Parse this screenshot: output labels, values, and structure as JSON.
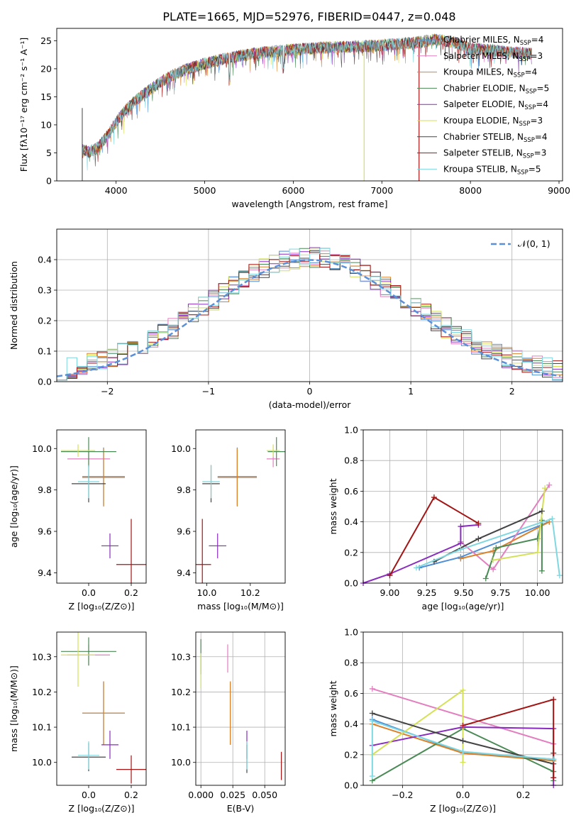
{
  "title": "PLATE=1665, MJD=52976, FIBERID=0447, z=0.048",
  "colors": {
    "chabrier_miles": "#4f8fd8",
    "salpeter_miles": "#e37fbf",
    "kroupa_miles": "#d9822b",
    "chabrier_elodie": "#4a8a55",
    "salpeter_elodie": "#8a2bbf",
    "kroupa_elodie": "#d4e157",
    "chabrier_stelib": "#444444",
    "salpeter_stelib": "#a31515",
    "kroupa_stelib": "#7fd8e0",
    "normal_curve": "#5b8fd8"
  },
  "chart_data": [
    {
      "id": "spectrum",
      "type": "line",
      "xlabel": "wavelength [Angstrom, rest frame]",
      "ylabel": "Flux [fλ10⁻¹⁷ erg cm⁻² s⁻¹ A⁻¹]",
      "xlim": [
        3330,
        9040
      ],
      "ylim": [
        0,
        27.2
      ],
      "xticks": [
        "4000",
        "5000",
        "6000",
        "7000",
        "8000",
        "9000"
      ],
      "yticks": [
        "0",
        "5",
        "10",
        "15",
        "20",
        "25"
      ],
      "continuum": {
        "x": [
          3620,
          3700,
          3800,
          3900,
          4000,
          4100,
          4200,
          4300,
          4400,
          4500,
          4600,
          4700,
          4800,
          4900,
          5000,
          5200,
          5400,
          5600,
          5800,
          6000,
          6200,
          6400,
          6600,
          6800,
          7000,
          7200,
          7400,
          7600,
          7800,
          8000,
          8200,
          8400,
          8600,
          8690
        ],
        "y": [
          5.5,
          5.2,
          6.0,
          8.0,
          10.5,
          12.5,
          14.0,
          15.3,
          16.5,
          17.6,
          18.5,
          19.3,
          19.9,
          20.4,
          20.9,
          21.7,
          22.3,
          22.8,
          23.1,
          23.4,
          23.6,
          23.8,
          23.9,
          24.0,
          24.2,
          24.4,
          24.7,
          25.2,
          24.8,
          23.6,
          23.4,
          23.0,
          22.8,
          22.7
        ]
      },
      "legend": [
        {
          "label": "Chabrier MILES, N",
          "sub": "SSP",
          "tail": "=4"
        },
        {
          "label": "Salpeter MILES, N",
          "sub": "SSP",
          "tail": "=3"
        },
        {
          "label": "Kroupa MILES, N",
          "sub": "SSP",
          "tail": "=4"
        },
        {
          "label": "Chabrier ELODIE, N",
          "sub": "SSP",
          "tail": "=5"
        },
        {
          "label": "Salpeter ELODIE, N",
          "sub": "SSP",
          "tail": "=4"
        },
        {
          "label": "Kroupa ELODIE, N",
          "sub": "SSP",
          "tail": "=3"
        },
        {
          "label": "Chabrier STELIB, N",
          "sub": "SSP",
          "tail": "=4"
        },
        {
          "label": "Salpeter STELIB, N",
          "sub": "SSP",
          "tail": "=3"
        },
        {
          "label": "Kroupa STELIB, N",
          "sub": "SSP",
          "tail": "=5"
        }
      ]
    },
    {
      "id": "residuals",
      "type": "histogram",
      "xlabel": "(data-model)/error",
      "ylabel": "Normed distribution",
      "xlim": [
        -2.5,
        2.5
      ],
      "ylim": [
        0,
        0.5
      ],
      "xticks": [
        "−2",
        "−1",
        "0",
        "1",
        "2"
      ],
      "yticks": [
        "0.0",
        "0.1",
        "0.2",
        "0.3",
        "0.4"
      ],
      "grid": true,
      "legend": "𝒩(0, 1)",
      "bin_width": 0.1
    },
    {
      "id": "age_vs_Z",
      "type": "scatter",
      "xlabel": "Z [log₁₀(Z/Z⊙)]",
      "ylabel": "age  [log₁₀(age/yr)]",
      "xlim": [
        -0.15,
        0.27
      ],
      "ylim": [
        9.35,
        10.09
      ],
      "xticks": [
        "0.0",
        "0.2"
      ],
      "yticks": [
        "9.4",
        "9.6",
        "9.8",
        "10.0"
      ],
      "points": [
        {
          "model": "chabrier_miles",
          "x": 0.07,
          "y": 9.865,
          "xerr": 0.1,
          "yerr": 0.14
        },
        {
          "model": "salpeter_miles",
          "x": 0.0,
          "y": 9.95,
          "xerr": 0.1,
          "yerr": 0.04
        },
        {
          "model": "kroupa_miles",
          "x": 0.07,
          "y": 9.86,
          "xerr": 0.1,
          "yerr": 0.14
        },
        {
          "model": "chabrier_elodie",
          "x": 0.0,
          "y": 9.985,
          "xerr": 0.13,
          "yerr": 0.07
        },
        {
          "model": "salpeter_elodie",
          "x": 0.1,
          "y": 9.53,
          "xerr": 0.04,
          "yerr": 0.06
        },
        {
          "model": "kroupa_elodie",
          "x": -0.05,
          "y": 9.99,
          "xerr": 0.08,
          "yerr": 0.03
        },
        {
          "model": "chabrier_stelib",
          "x": 0.0,
          "y": 9.83,
          "xerr": 0.08,
          "yerr": 0.09
        },
        {
          "model": "salpeter_stelib",
          "x": 0.2,
          "y": 9.44,
          "xerr": 0.07,
          "yerr": 0.22
        },
        {
          "model": "kroupa_stelib",
          "x": 0.0,
          "y": 9.84,
          "xerr": 0.05,
          "yerr": 0.08
        }
      ]
    },
    {
      "id": "age_vs_mass",
      "type": "scatter",
      "xlabel": "mass [log₁₀(M/M⊙)]",
      "xlim": [
        9.95,
        10.36
      ],
      "ylim": [
        9.35,
        10.09
      ],
      "xticks": [
        "10.0",
        "10.2"
      ],
      "yticks": [
        "9.4",
        "9.6",
        "9.8",
        "10.0"
      ],
      "points": [
        {
          "model": "chabrier_miles",
          "x": 10.14,
          "y": 9.865,
          "xerr": 0.09,
          "yerr": 0.14
        },
        {
          "model": "salpeter_miles",
          "x": 10.305,
          "y": 9.95,
          "xerr": 0.03,
          "yerr": 0.04
        },
        {
          "model": "kroupa_miles",
          "x": 10.14,
          "y": 9.86,
          "xerr": 0.09,
          "yerr": 0.14
        },
        {
          "model": "chabrier_elodie",
          "x": 10.32,
          "y": 9.985,
          "xerr": 0.04,
          "yerr": 0.07
        },
        {
          "model": "salpeter_elodie",
          "x": 10.05,
          "y": 9.53,
          "xerr": 0.04,
          "yerr": 0.06
        },
        {
          "model": "kroupa_elodie",
          "x": 10.305,
          "y": 9.99,
          "xerr": 0.03,
          "yerr": 0.03
        },
        {
          "model": "chabrier_stelib",
          "x": 10.02,
          "y": 9.83,
          "xerr": 0.04,
          "yerr": 0.09
        },
        {
          "model": "salpeter_stelib",
          "x": 9.98,
          "y": 9.44,
          "xerr": 0.04,
          "yerr": 0.22
        },
        {
          "model": "kroupa_stelib",
          "x": 10.02,
          "y": 9.84,
          "xerr": 0.04,
          "yerr": 0.08
        }
      ]
    },
    {
      "id": "weight_vs_age",
      "type": "line",
      "xlabel": "age  [log₁₀(age/yr)]",
      "ylabel": "mass weight",
      "xlim": [
        8.82,
        10.17
      ],
      "ylim": [
        0,
        1.0
      ],
      "xticks": [
        "9.00",
        "9.25",
        "9.50",
        "9.75",
        "10.00"
      ],
      "yticks": [
        "0.0",
        "0.2",
        "0.4",
        "0.6",
        "0.8",
        "1.0"
      ],
      "grid": true,
      "series": [
        {
          "model": "chabrier_miles",
          "x": [
            9.2,
            9.48,
            10.08
          ],
          "y": [
            0.1,
            0.17,
            0.4
          ]
        },
        {
          "model": "salpeter_miles",
          "x": [
            9.48,
            9.7,
            10.08
          ],
          "y": [
            0.27,
            0.09,
            0.64
          ]
        },
        {
          "model": "kroupa_miles",
          "x": [
            9.48,
            9.7,
            10.08
          ],
          "y": [
            0.16,
            0.21,
            0.4
          ]
        },
        {
          "model": "chabrier_elodie",
          "x": [
            9.65,
            9.72,
            10.0,
            10.03,
            10.03
          ],
          "y": [
            0.03,
            0.23,
            0.29,
            0.41,
            0.08
          ]
        },
        {
          "model": "salpeter_elodie",
          "x": [
            8.82,
            9.0,
            9.48,
            9.48,
            9.6
          ],
          "y": [
            0.0,
            0.06,
            0.26,
            0.37,
            0.38
          ]
        },
        {
          "model": "kroupa_elodie",
          "x": [
            9.7,
            10.0,
            10.05
          ],
          "y": [
            0.15,
            0.2,
            0.62
          ]
        },
        {
          "model": "chabrier_stelib",
          "x": [
            9.3,
            9.6,
            10.03
          ],
          "y": [
            0.14,
            0.29,
            0.47
          ]
        },
        {
          "model": "salpeter_stelib",
          "x": [
            9.0,
            9.3,
            9.6
          ],
          "y": [
            0.05,
            0.56,
            0.39
          ]
        },
        {
          "model": "kroupa_stelib",
          "x": [
            9.18,
            9.48,
            10.1,
            10.15
          ],
          "y": [
            0.1,
            0.22,
            0.42,
            0.05
          ]
        }
      ]
    },
    {
      "id": "mass_vs_Z",
      "type": "scatter",
      "xlabel": "Z [log₁₀(Z/Z⊙)]",
      "ylabel": "mass [log₁₀(M/M⊙)]",
      "xlim": [
        -0.15,
        0.27
      ],
      "ylim": [
        9.935,
        10.37
      ],
      "xticks": [
        "0.0",
        "0.2"
      ],
      "yticks": [
        "10.0",
        "10.1",
        "10.2",
        "10.3"
      ],
      "points": [
        {
          "model": "chabrier_miles",
          "x": 0.07,
          "y": 10.14,
          "xerr": 0.1,
          "yerr": 0.09
        },
        {
          "model": "salpeter_miles",
          "x": 0.0,
          "y": 10.305,
          "xerr": 0.1,
          "yerr": 0.03
        },
        {
          "model": "kroupa_miles",
          "x": 0.07,
          "y": 10.14,
          "xerr": 0.1,
          "yerr": 0.09
        },
        {
          "model": "chabrier_elodie",
          "x": 0.0,
          "y": 10.315,
          "xerr": 0.13,
          "yerr": 0.04
        },
        {
          "model": "salpeter_elodie",
          "x": 0.1,
          "y": 10.05,
          "xerr": 0.04,
          "yerr": 0.04
        },
        {
          "model": "kroupa_elodie",
          "x": -0.05,
          "y": 10.305,
          "xerr": 0.08,
          "yerr": 0.09
        },
        {
          "model": "chabrier_stelib",
          "x": 0.0,
          "y": 10.015,
          "xerr": 0.08,
          "yerr": 0.04
        },
        {
          "model": "salpeter_stelib",
          "x": 0.2,
          "y": 9.98,
          "xerr": 0.07,
          "yerr": 0.04
        },
        {
          "model": "kroupa_stelib",
          "x": 0.0,
          "y": 10.02,
          "xerr": 0.05,
          "yerr": 0.04
        }
      ]
    },
    {
      "id": "mass_vs_ebv",
      "type": "scatter",
      "xlabel": "E(B-V)",
      "xlim": [
        -0.004,
        0.066
      ],
      "ylim": [
        9.935,
        10.37
      ],
      "xticks": [
        "0.000",
        "0.025",
        "0.050"
      ],
      "yticks": [
        "10.0",
        "10.1",
        "10.2",
        "10.3"
      ],
      "grid": true,
      "points": [
        {
          "model": "chabrier_miles",
          "x": 0.023,
          "y": 10.14,
          "xerr": 0.0,
          "yerr": 0.09
        },
        {
          "model": "salpeter_miles",
          "x": 0.021,
          "y": 10.295,
          "xerr": 0.0,
          "yerr": 0.04
        },
        {
          "model": "kroupa_miles",
          "x": 0.023,
          "y": 10.14,
          "xerr": 0.0,
          "yerr": 0.09
        },
        {
          "model": "chabrier_elodie",
          "x": 0.0,
          "y": 10.3,
          "xerr": 0.0,
          "yerr": 0.05
        },
        {
          "model": "salpeter_elodie",
          "x": 0.036,
          "y": 10.05,
          "xerr": 0.0,
          "yerr": 0.04
        },
        {
          "model": "kroupa_elodie",
          "x": 0.0,
          "y": 10.26,
          "xerr": 0.0,
          "yerr": 0.05
        },
        {
          "model": "chabrier_stelib",
          "x": 0.036,
          "y": 10.01,
          "xerr": 0.0,
          "yerr": 0.04
        },
        {
          "model": "salpeter_stelib",
          "x": 0.063,
          "y": 9.99,
          "xerr": 0.0,
          "yerr": 0.04
        },
        {
          "model": "kroupa_stelib",
          "x": 0.036,
          "y": 10.02,
          "xerr": 0.0,
          "yerr": 0.04
        }
      ]
    },
    {
      "id": "weight_vs_Z",
      "type": "line",
      "xlabel": "Z [log₁₀(Z/Z⊙)]",
      "ylabel": "mass weight",
      "xlim": [
        -0.33,
        0.33
      ],
      "ylim": [
        0,
        1.0
      ],
      "xticks": [
        "−0.2",
        "0.0",
        "0.2"
      ],
      "yticks": [
        "0.0",
        "0.2",
        "0.4",
        "0.6",
        "0.8",
        "1.0"
      ],
      "grid": true,
      "series": [
        {
          "model": "chabrier_miles",
          "x": [
            -0.3,
            0.0,
            0.3
          ],
          "y": [
            0.43,
            0.21,
            0.17
          ]
        },
        {
          "model": "salpeter_miles",
          "x": [
            -0.3,
            0.3
          ],
          "y": [
            0.63,
            0.27
          ]
        },
        {
          "model": "kroupa_miles",
          "x": [
            -0.3,
            0.0,
            0.3
          ],
          "y": [
            0.4,
            0.21,
            0.16
          ]
        },
        {
          "model": "chabrier_elodie",
          "x": [
            -0.3,
            0.0,
            0.3,
            0.3
          ],
          "y": [
            0.03,
            0.37,
            0.09,
            0.03
          ]
        },
        {
          "model": "salpeter_elodie",
          "x": [
            -0.3,
            0.0,
            0.3,
            0.3
          ],
          "y": [
            0.26,
            0.38,
            0.37,
            0.0
          ]
        },
        {
          "model": "kroupa_elodie",
          "x": [
            -0.3,
            0.0,
            0.0
          ],
          "y": [
            0.2,
            0.62,
            0.15
          ]
        },
        {
          "model": "chabrier_stelib",
          "x": [
            -0.3,
            0.0,
            0.3
          ],
          "y": [
            0.47,
            0.29,
            0.14
          ]
        },
        {
          "model": "salpeter_stelib",
          "x": [
            0.0,
            0.3,
            0.3,
            0.3
          ],
          "y": [
            0.39,
            0.56,
            0.21,
            0.05
          ]
        },
        {
          "model": "kroupa_stelib",
          "x": [
            -0.3,
            -0.3,
            0.0,
            0.3
          ],
          "y": [
            0.06,
            0.42,
            0.22,
            0.17
          ]
        }
      ]
    }
  ]
}
